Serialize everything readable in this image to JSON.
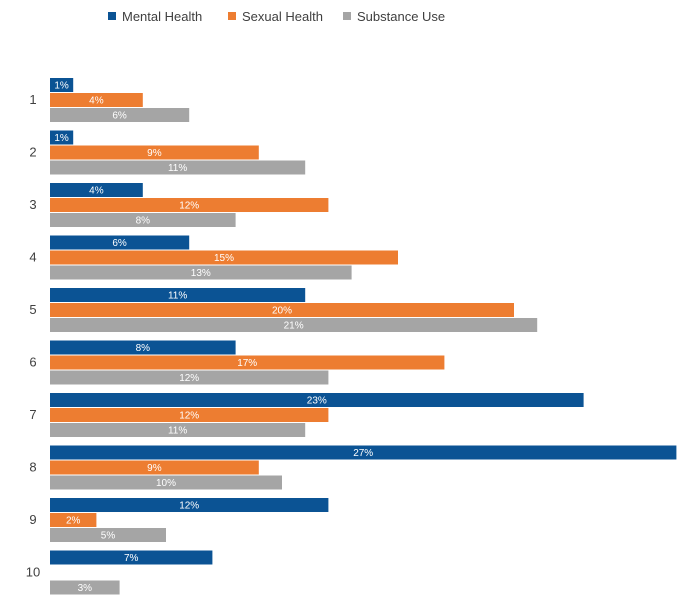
{
  "chart_data": {
    "type": "bar",
    "orientation": "horizontal",
    "categories": [
      "1",
      "2",
      "3",
      "4",
      "5",
      "6",
      "7",
      "8",
      "9",
      "10"
    ],
    "series": [
      {
        "name": "Mental Health",
        "color": "#0B5394",
        "values": [
          1,
          1,
          4,
          6,
          11,
          8,
          23,
          27,
          12,
          7
        ],
        "labels": [
          "1%",
          "1%",
          "4%",
          "6%",
          "11%",
          "8%",
          "23%",
          "27%",
          "12%",
          "7%"
        ]
      },
      {
        "name": "Sexual Health",
        "color": "#ED7D31",
        "values": [
          4,
          9,
          12,
          15,
          20,
          17,
          12,
          9,
          2,
          0
        ],
        "labels": [
          "4%",
          "9%",
          "12%",
          "15%",
          "20%",
          "17%",
          "12%",
          "9%",
          "2%",
          ""
        ]
      },
      {
        "name": "Substance Use",
        "color": "#A5A5A5",
        "values": [
          6,
          11,
          8,
          13,
          21,
          12,
          11,
          10,
          5,
          3
        ],
        "labels": [
          "6%",
          "11%",
          "8%",
          "13%",
          "21%",
          "12%",
          "11%",
          "10%",
          "5%",
          "3%"
        ]
      }
    ],
    "legend_position": "top",
    "grid": false
  }
}
